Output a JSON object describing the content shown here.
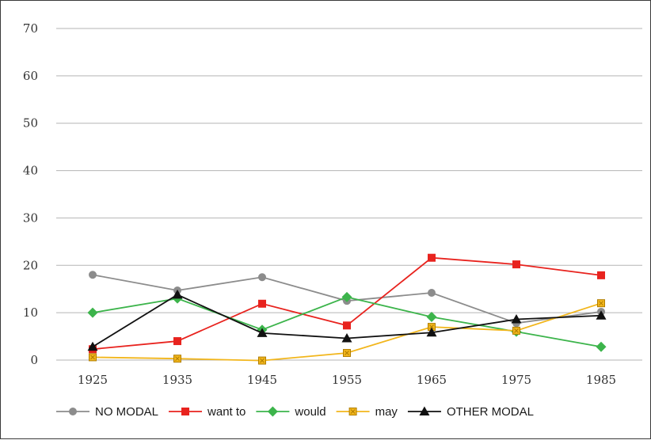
{
  "chart_data": {
    "type": "line",
    "title": "",
    "xlabel": "",
    "ylabel": "",
    "categories": [
      "1925",
      "1935",
      "1945",
      "1955",
      "1965",
      "1975",
      "1985"
    ],
    "ylim": [
      0,
      70
    ],
    "yticks": [
      0,
      10,
      20,
      30,
      40,
      50,
      60,
      70
    ],
    "ytick_labels": [
      "0",
      "10",
      "20",
      "30",
      "40",
      "50",
      "60",
      "70"
    ],
    "grid": true,
    "legend_position": "bottom",
    "series": [
      {
        "name": "NO MODAL",
        "color": "#8c8c8c",
        "marker": "circle",
        "values": [
          18.0,
          14.7,
          17.5,
          12.5,
          14.2,
          7.8,
          10.2
        ]
      },
      {
        "name": "want to",
        "color": "#e8231e",
        "marker": "square",
        "values": [
          2.3,
          4.0,
          11.9,
          7.3,
          21.6,
          20.2,
          17.9
        ]
      },
      {
        "name": "would",
        "color": "#3cb44b",
        "marker": "diamond",
        "values": [
          10.0,
          13.0,
          6.4,
          13.3,
          9.1,
          6.0,
          2.8
        ]
      },
      {
        "name": "may",
        "color": "#f2b61c",
        "marker": "square-x",
        "values": [
          0.6,
          0.3,
          -0.1,
          1.5,
          7.0,
          6.2,
          12.0
        ]
      },
      {
        "name": "OTHER MODAL",
        "color": "#111111",
        "marker": "triangle",
        "values": [
          2.8,
          13.8,
          5.7,
          4.6,
          5.8,
          8.6,
          9.4
        ]
      }
    ]
  }
}
